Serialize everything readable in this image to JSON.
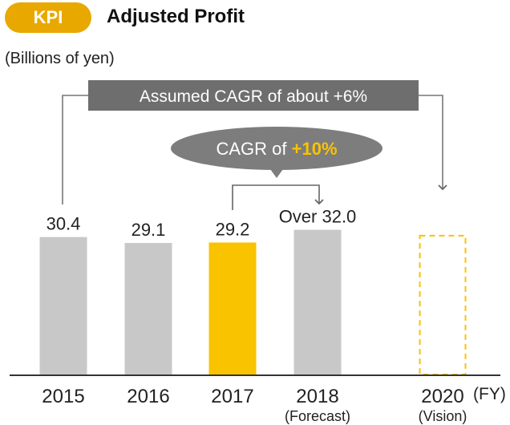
{
  "header": {
    "badge": "KPI",
    "title": "Adjusted Profit"
  },
  "colors": {
    "accent": "#e8a800",
    "highlight_bar": "#f9c300",
    "bar": "#c8c8c9",
    "banner_dark": "#6e6e6e",
    "ellipse": "#7d7d7d"
  },
  "annotations": {
    "long_cagr": "Assumed CAGR of about +6%",
    "short_cagr_prefix": "CAGR of ",
    "short_cagr_value": "+10%"
  },
  "chart_data": {
    "type": "bar",
    "title": "Adjusted Profit",
    "ylabel": "(Billions of yen)",
    "x_unit": "(FY)",
    "ylim": [
      0,
      35
    ],
    "categories": [
      "2015",
      "2016",
      "2017",
      "2018",
      "2020"
    ],
    "sublabels": [
      "",
      "",
      "",
      "(Forecast)",
      "(Vision)"
    ],
    "values": [
      30.4,
      29.1,
      29.2,
      32.0,
      null
    ],
    "value_labels": [
      "30.4",
      "29.1",
      "29.2",
      "Over 32.0",
      ""
    ],
    "styles": [
      "solid",
      "solid",
      "highlight",
      "solid",
      "dashed"
    ]
  }
}
